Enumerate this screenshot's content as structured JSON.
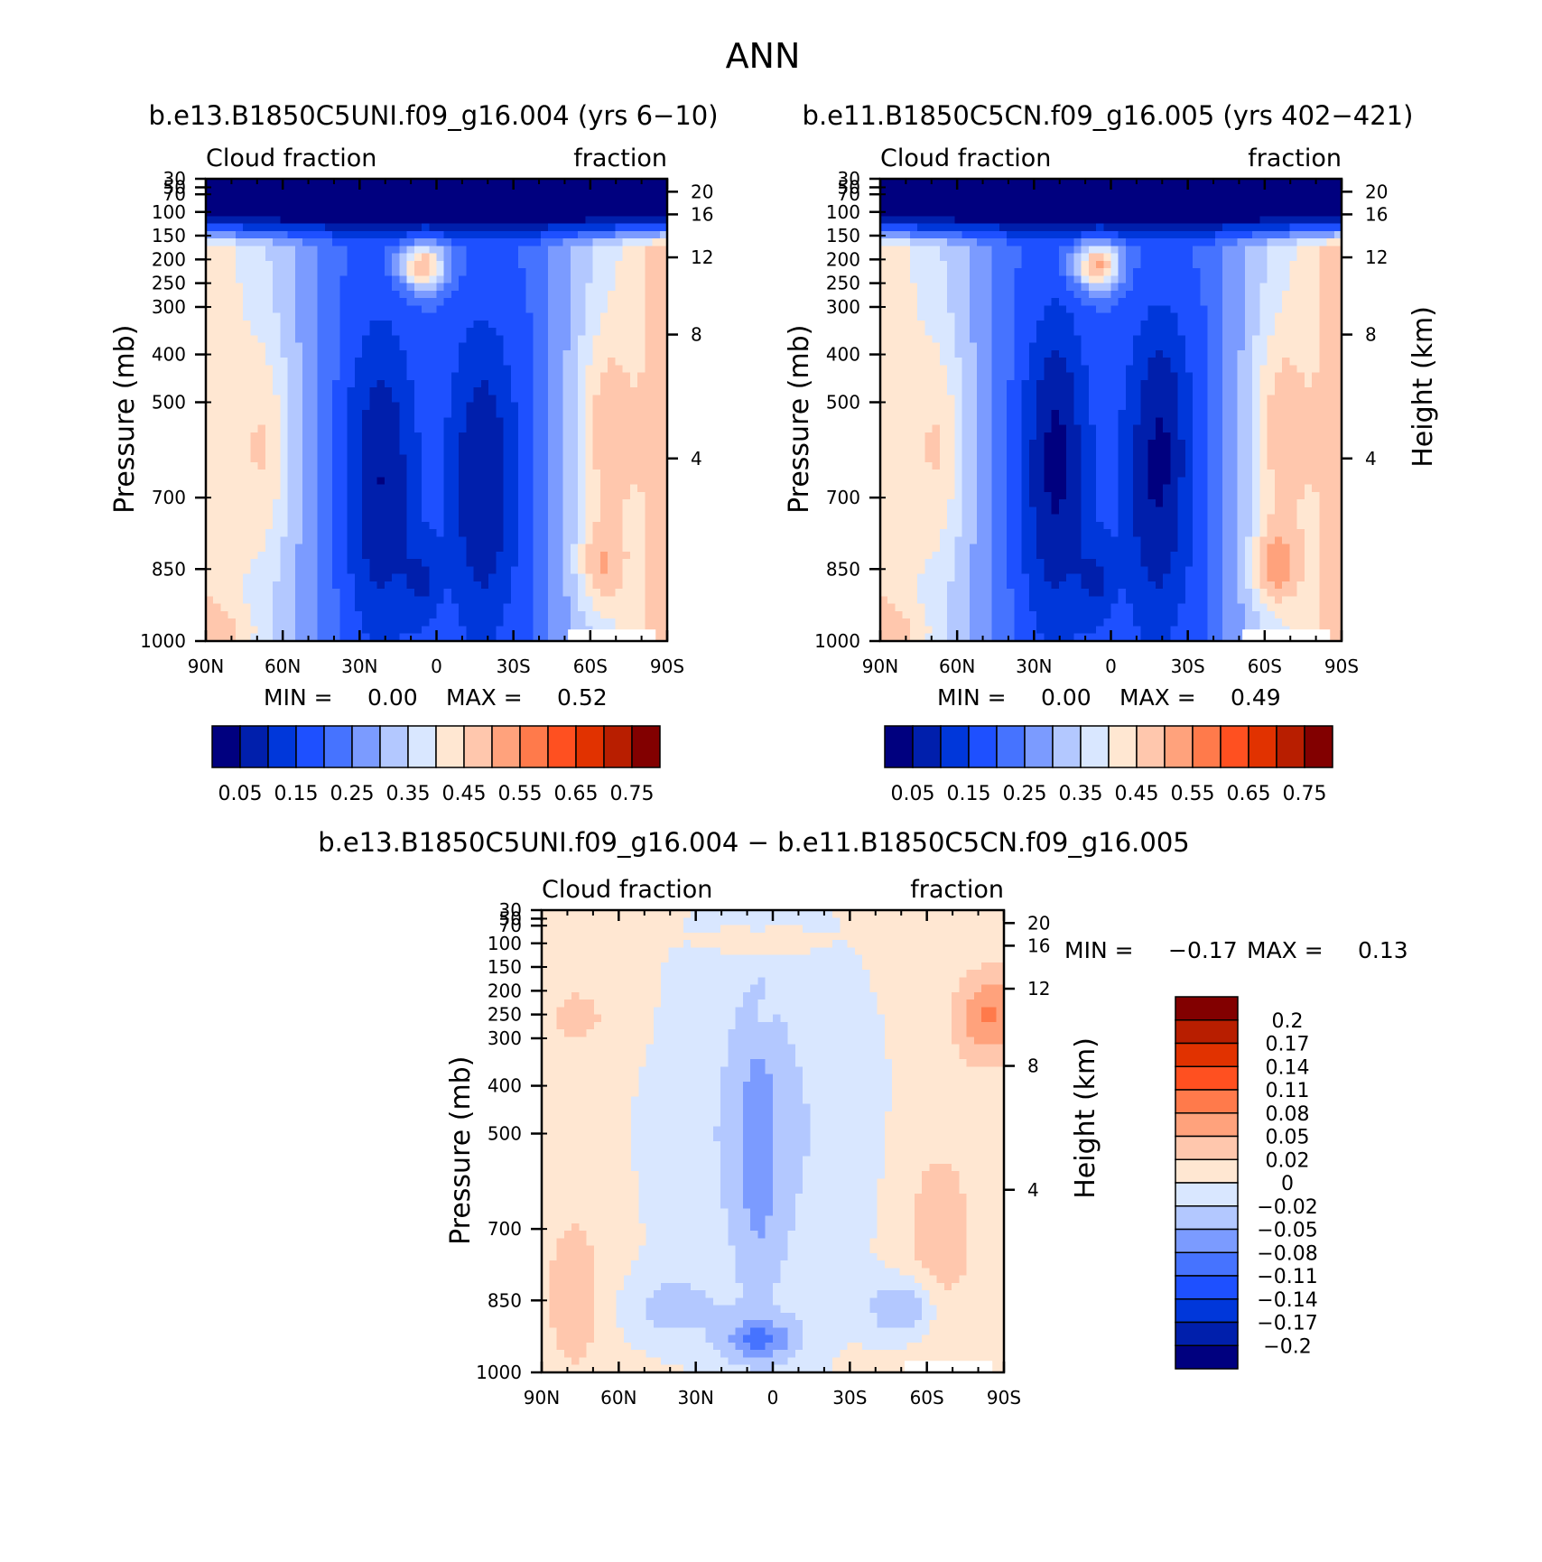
{
  "figure": {
    "title": "ANN",
    "bottom_title": "b.e13.B1850C5UNI.f09_g16.004 − b.e11.B1850C5CN.f09_g16.005"
  },
  "chart_data": [
    {
      "type": "heatmap",
      "title": "b.e13.B1850C5UNI.f09_g16.004 (yrs 6−10)",
      "left_label": "Cloud fraction",
      "right_label": "fraction",
      "ylabel": "Pressure (mb)",
      "y2label": "",
      "x_ticks": [
        "90N",
        "60N",
        "30N",
        "0",
        "30S",
        "60S",
        "90S"
      ],
      "p_ticks": [
        30,
        50,
        70,
        100,
        150,
        200,
        250,
        300,
        400,
        500,
        700,
        850,
        1000
      ],
      "h_ticks": [
        20,
        16,
        12,
        8,
        4
      ],
      "min_label": "MIN =",
      "min_value": "0.00",
      "max_label": "MAX =",
      "max_value": "0.52",
      "levels": [
        0.05,
        0.1,
        0.15,
        0.2,
        0.25,
        0.3,
        0.35,
        0.4,
        0.45,
        0.5,
        0.55,
        0.6,
        0.65,
        0.7,
        0.75
      ],
      "colorbar_labels": [
        "0.05",
        "0.15",
        "0.25",
        "0.35",
        "0.45",
        "0.55",
        "0.65",
        "0.75"
      ],
      "colors": [
        "#00007f",
        "#001fac",
        "#0037da",
        "#1e50ff",
        "#4673ff",
        "#7b9bff",
        "#b3c8ff",
        "#d9e7ff",
        "#ffe7d2",
        "#ffc7ad",
        "#ffa27c",
        "#ff7a4b",
        "#ff5020",
        "#e13200",
        "#b81e00",
        "#820000"
      ]
    },
    {
      "type": "heatmap",
      "title": "b.e11.B1850C5CN.f09_g16.005 (yrs 402−421)",
      "left_label": "Cloud fraction",
      "right_label": "fraction",
      "ylabel": "Pressure (mb)",
      "y2label": "Height (km)",
      "x_ticks": [
        "90N",
        "60N",
        "30N",
        "0",
        "30S",
        "60S",
        "90S"
      ],
      "p_ticks": [
        30,
        50,
        70,
        100,
        150,
        200,
        250,
        300,
        400,
        500,
        700,
        850,
        1000
      ],
      "h_ticks": [
        20,
        16,
        12,
        8,
        4
      ],
      "min_label": "MIN =",
      "min_value": "0.00",
      "max_label": "MAX =",
      "max_value": "0.49",
      "levels": [
        0.05,
        0.1,
        0.15,
        0.2,
        0.25,
        0.3,
        0.35,
        0.4,
        0.45,
        0.5,
        0.55,
        0.6,
        0.65,
        0.7,
        0.75
      ],
      "colorbar_labels": [
        "0.05",
        "0.15",
        "0.25",
        "0.35",
        "0.45",
        "0.55",
        "0.65",
        "0.75"
      ],
      "colors": [
        "#00007f",
        "#001fac",
        "#0037da",
        "#1e50ff",
        "#4673ff",
        "#7b9bff",
        "#b3c8ff",
        "#d9e7ff",
        "#ffe7d2",
        "#ffc7ad",
        "#ffa27c",
        "#ff7a4b",
        "#ff5020",
        "#e13200",
        "#b81e00",
        "#820000"
      ]
    },
    {
      "type": "heatmap",
      "title": "",
      "left_label": "Cloud fraction",
      "right_label": "fraction",
      "ylabel": "Pressure (mb)",
      "y2label": "Height (km)",
      "x_ticks": [
        "90N",
        "60N",
        "30N",
        "0",
        "30S",
        "60S",
        "90S"
      ],
      "p_ticks": [
        30,
        50,
        70,
        100,
        150,
        200,
        250,
        300,
        400,
        500,
        700,
        850,
        1000
      ],
      "h_ticks": [
        20,
        16,
        12,
        8,
        4
      ],
      "min_label": "MIN =",
      "min_value": "−0.17",
      "max_label": "MAX =",
      "max_value": "0.13",
      "levels": [
        -0.2,
        -0.17,
        -0.14,
        -0.11,
        -0.08,
        -0.05,
        -0.02,
        0,
        0.02,
        0.05,
        0.08,
        0.11,
        0.14,
        0.17,
        0.2
      ],
      "colorbar_labels": [
        "0.2",
        "0.17",
        "0.14",
        "0.11",
        "0.08",
        "0.05",
        "0.02",
        "0",
        "−0.02",
        "−0.05",
        "−0.08",
        "−0.11",
        "−0.14",
        "−0.17",
        "−0.2"
      ],
      "colors": [
        "#00007f",
        "#001fac",
        "#0037da",
        "#1e50ff",
        "#4673ff",
        "#7b9bff",
        "#b3c8ff",
        "#d9e7ff",
        "#ffe7d2",
        "#ffc7ad",
        "#ffa27c",
        "#ff7a4b",
        "#ff5020",
        "#e13200",
        "#b81e00",
        "#820000"
      ]
    }
  ]
}
